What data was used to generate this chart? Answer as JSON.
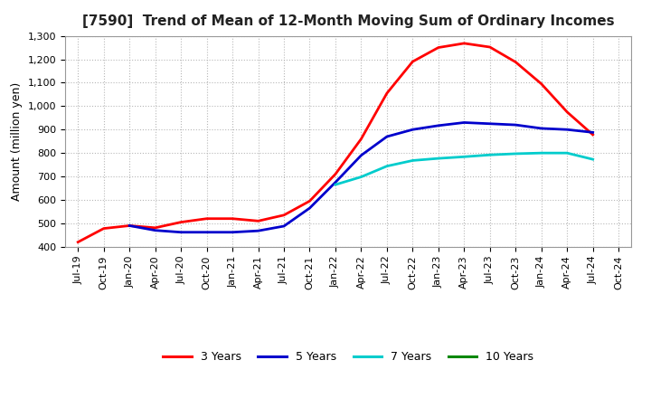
{
  "title": "[7590]  Trend of Mean of 12-Month Moving Sum of Ordinary Incomes",
  "ylabel": "Amount (million yen)",
  "ylim": [
    400,
    1300
  ],
  "yticks": [
    400,
    500,
    600,
    700,
    800,
    900,
    1000,
    1100,
    1200,
    1300
  ],
  "ytick_labels": [
    "400",
    "500",
    "600",
    "700",
    "800",
    "900",
    "1,000",
    "1,100",
    "1,200",
    "1,300"
  ],
  "background_color": "#ffffff",
  "plot_bg_color": "#ffffff",
  "grid_color": "#b0b0b0",
  "x_labels": [
    "Jul-19",
    "Oct-19",
    "Jan-20",
    "Apr-20",
    "Jul-20",
    "Oct-20",
    "Jan-21",
    "Apr-21",
    "Jul-21",
    "Oct-21",
    "Jan-22",
    "Apr-22",
    "Jul-22",
    "Oct-22",
    "Jan-23",
    "Apr-23",
    "Jul-23",
    "Oct-23",
    "Jan-24",
    "Apr-24",
    "Jul-24",
    "Oct-24"
  ],
  "series": {
    "3 Years": {
      "color": "#ff0000",
      "values": [
        420,
        478,
        490,
        481,
        505,
        520,
        520,
        510,
        535,
        595,
        710,
        860,
        1055,
        1190,
        1250,
        1268,
        1252,
        1188,
        1095,
        975,
        878,
        null
      ]
    },
    "5 Years": {
      "color": "#0000cc",
      "values": [
        null,
        null,
        490,
        470,
        462,
        462,
        462,
        468,
        488,
        565,
        675,
        790,
        870,
        900,
        917,
        930,
        925,
        920,
        905,
        900,
        888,
        null
      ]
    },
    "7 Years": {
      "color": "#00cccc",
      "values": [
        null,
        null,
        null,
        null,
        null,
        null,
        null,
        null,
        null,
        null,
        665,
        698,
        744,
        768,
        777,
        784,
        792,
        797,
        800,
        800,
        773,
        null
      ]
    },
    "10 Years": {
      "color": "#008800",
      "values": [
        null,
        null,
        null,
        null,
        null,
        null,
        null,
        null,
        null,
        null,
        null,
        null,
        null,
        null,
        null,
        null,
        null,
        null,
        null,
        null,
        null,
        null
      ]
    }
  },
  "legend_entries": [
    "3 Years",
    "5 Years",
    "7 Years",
    "10 Years"
  ],
  "legend_colors": [
    "#ff0000",
    "#0000cc",
    "#00cccc",
    "#008800"
  ],
  "title_fontsize": 11,
  "axis_label_fontsize": 9,
  "tick_fontsize": 8,
  "linewidth": 2.0
}
